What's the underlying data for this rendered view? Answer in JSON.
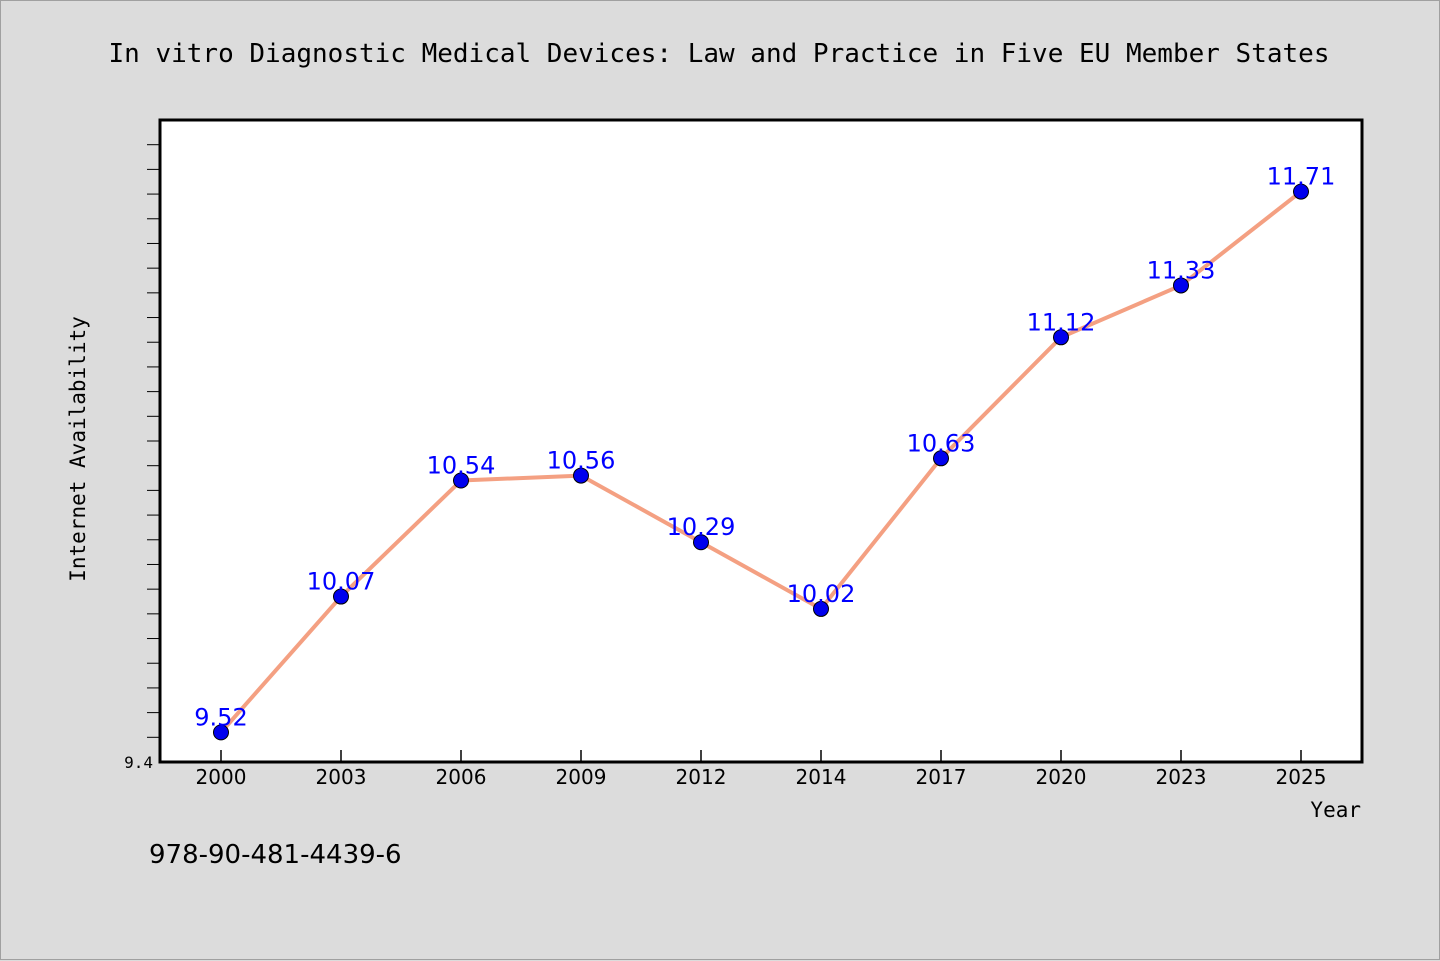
{
  "chart_data": {
    "type": "line",
    "title": "In vitro Diagnostic Medical Devices: Law and Practice in Five EU Member States",
    "xlabel": "Year",
    "ylabel": "Internet Availability",
    "categories": [
      "2000",
      "2003",
      "2006",
      "2009",
      "2012",
      "2014",
      "2017",
      "2020",
      "2023",
      "2025"
    ],
    "values": [
      9.52,
      10.07,
      10.54,
      10.56,
      10.29,
      10.02,
      10.63,
      11.12,
      11.33,
      11.71
    ],
    "data_labels": [
      "9.52",
      "10.07",
      "10.54",
      "10.56",
      "10.29",
      "10.02",
      "10.63",
      "11.12",
      "11.33",
      "11.71"
    ],
    "ylim": [
      9.4,
      12.0
    ],
    "y_tick_labels": [
      "9.4"
    ],
    "grid": false,
    "legend": "none",
    "colors": {
      "line": "#f4a082",
      "marker": "#0000ee",
      "label": "#0000ff",
      "plot_bg": "#ffffff",
      "page_bg": "#dcdcdc"
    }
  },
  "footer": {
    "isbn": "978-90-481-4439-6"
  }
}
